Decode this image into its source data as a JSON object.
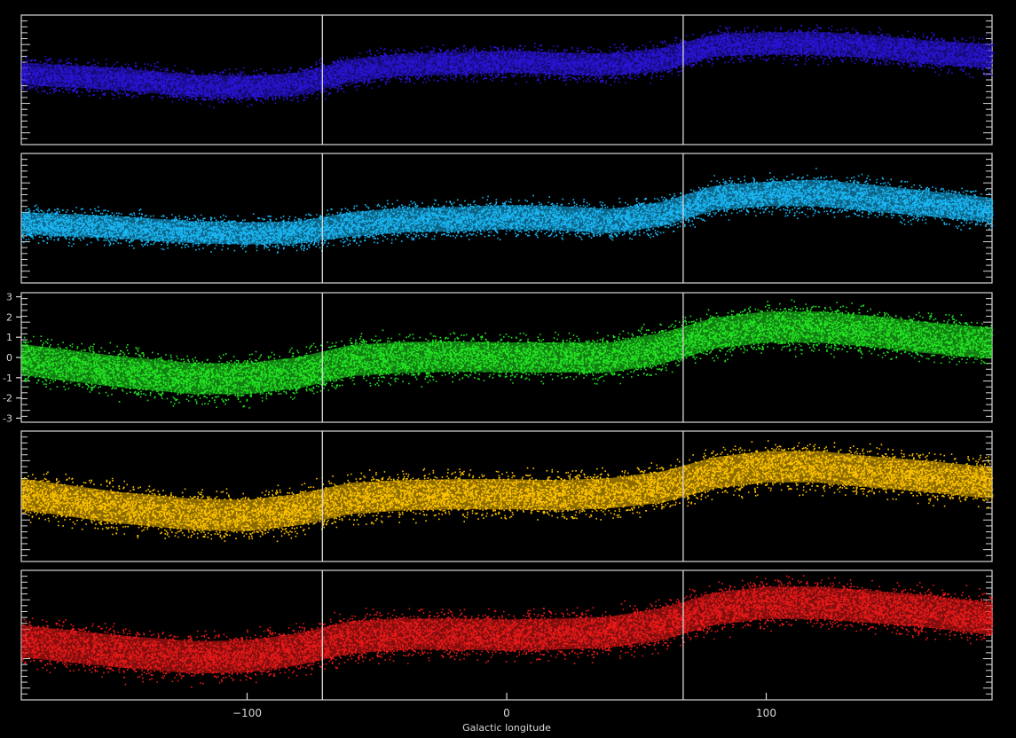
{
  "chart_data": {
    "type": "scatter",
    "xlabel": "Galactic longitude",
    "xlim": [
      -187,
      187
    ],
    "x_ticks": [
      -100,
      0,
      100
    ],
    "x_tick_labels": [
      "−100",
      "0",
      "100"
    ],
    "panel_ylim": [
      -3.2,
      3.2
    ],
    "y_ticks_labeled_panel": 3,
    "y_ticks": [
      3,
      2,
      1,
      0,
      -1,
      -2,
      -3
    ],
    "y_tick_labels": [
      "3",
      "2",
      "1",
      "0",
      "-1",
      "-2",
      "-3"
    ],
    "vertical_lines_x": [
      -71,
      68
    ],
    "grid": false,
    "background": "#000000",
    "axis_color": "#d8d8d8",
    "series": [
      {
        "color": "#2a14d8",
        "center_x": [
          -187,
          -150,
          -120,
          -100,
          -80,
          -60,
          -40,
          -20,
          0,
          20,
          40,
          60,
          80,
          100,
          120,
          140,
          160,
          187
        ],
        "center_y": [
          0.3,
          0.05,
          -0.3,
          -0.35,
          -0.2,
          0.45,
          0.75,
          0.8,
          0.9,
          0.8,
          0.75,
          1.0,
          1.7,
          1.8,
          1.8,
          1.65,
          1.4,
          1.15
        ],
        "half_width": [
          1.0,
          1.0,
          1.0,
          1.0,
          1.0,
          1.05,
          1.0,
          1.0,
          1.0,
          1.0,
          1.0,
          1.05,
          1.0,
          1.0,
          1.05,
          1.05,
          1.05,
          1.1
        ]
      },
      {
        "color": "#1ab8f5",
        "center_x": [
          -187,
          -150,
          -120,
          -100,
          -80,
          -60,
          -40,
          -20,
          0,
          20,
          40,
          60,
          80,
          100,
          120,
          140,
          160,
          187
        ],
        "center_y": [
          -0.25,
          -0.45,
          -0.7,
          -0.75,
          -0.7,
          -0.3,
          -0.1,
          -0.05,
          0.05,
          0.0,
          -0.15,
          0.2,
          1.0,
          1.2,
          1.25,
          1.0,
          0.75,
          0.4
        ],
        "half_width": [
          1.0,
          1.0,
          1.0,
          1.0,
          1.0,
          1.1,
          1.1,
          1.1,
          1.1,
          1.1,
          1.1,
          1.1,
          1.1,
          1.1,
          1.2,
          1.2,
          1.15,
          1.1
        ]
      },
      {
        "color": "#22e622",
        "center_x": [
          -187,
          -150,
          -120,
          -100,
          -80,
          -60,
          -40,
          -20,
          0,
          20,
          40,
          60,
          80,
          100,
          120,
          140,
          160,
          187
        ],
        "center_y": [
          -0.1,
          -0.7,
          -1.05,
          -1.05,
          -0.75,
          -0.15,
          0.0,
          0.05,
          0.0,
          0.0,
          0.0,
          0.45,
          1.2,
          1.5,
          1.5,
          1.3,
          1.0,
          0.7
        ],
        "half_width": [
          1.4,
          1.4,
          1.4,
          1.4,
          1.4,
          1.4,
          1.4,
          1.35,
          1.35,
          1.35,
          1.35,
          1.4,
          1.4,
          1.4,
          1.4,
          1.4,
          1.4,
          1.4
        ]
      },
      {
        "color": "#ffc400",
        "center_x": [
          -187,
          -150,
          -120,
          -100,
          -80,
          -60,
          -40,
          -20,
          0,
          20,
          40,
          60,
          80,
          100,
          120,
          140,
          160,
          187
        ],
        "center_y": [
          0.1,
          -0.55,
          -0.9,
          -0.95,
          -0.65,
          -0.1,
          0.05,
          0.1,
          0.1,
          0.05,
          0.15,
          0.45,
          1.15,
          1.45,
          1.45,
          1.2,
          1.0,
          0.65
        ],
        "half_width": [
          1.4,
          1.4,
          1.4,
          1.4,
          1.4,
          1.4,
          1.35,
          1.35,
          1.35,
          1.35,
          1.35,
          1.4,
          1.4,
          1.4,
          1.4,
          1.4,
          1.4,
          1.4
        ]
      },
      {
        "color": "#ee1a1a",
        "center_x": [
          -187,
          -150,
          -120,
          -100,
          -80,
          -60,
          -40,
          -20,
          0,
          20,
          40,
          60,
          80,
          100,
          120,
          140,
          160,
          187
        ],
        "center_y": [
          -0.3,
          -0.8,
          -1.1,
          -1.05,
          -0.7,
          -0.1,
          0.05,
          0.05,
          0.0,
          0.05,
          0.15,
          0.55,
          1.3,
          1.6,
          1.6,
          1.4,
          1.2,
          0.8
        ],
        "half_width": [
          1.45,
          1.45,
          1.45,
          1.45,
          1.45,
          1.45,
          1.4,
          1.4,
          1.4,
          1.4,
          1.4,
          1.45,
          1.45,
          1.45,
          1.45,
          1.45,
          1.45,
          1.45
        ]
      }
    ]
  }
}
